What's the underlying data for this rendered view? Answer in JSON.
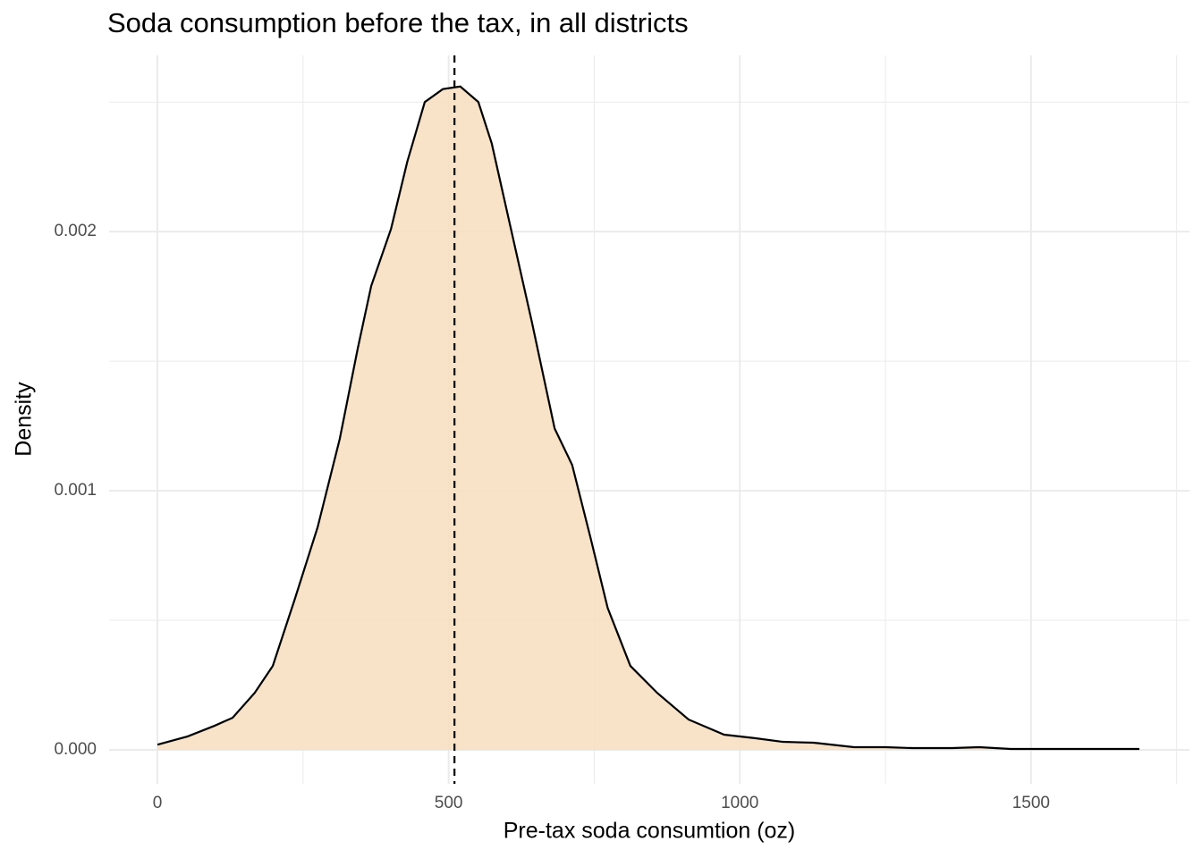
{
  "chart_data": {
    "type": "density",
    "title": "Soda consumption before the tax, in all districts",
    "x_label": "Pre-tax soda consumtion (oz)",
    "y_label": "Density",
    "x": [
      0,
      52,
      98,
      129,
      167,
      198,
      236,
      275,
      313,
      344,
      367,
      401,
      429,
      459,
      490,
      520,
      551,
      574,
      605,
      643,
      682,
      712,
      743,
      773,
      812,
      858,
      912,
      973,
      1027,
      1074,
      1127,
      1196,
      1250,
      1296,
      1365,
      1411,
      1465,
      1572,
      1649,
      1686
    ],
    "values": [
      2e-05,
      5.2e-05,
      9.3e-05,
      0.000124,
      0.00022,
      0.000324,
      0.000583,
      0.000859,
      0.0012,
      0.00155,
      0.00179,
      0.00201,
      0.00227,
      0.0025,
      0.00255,
      0.00256,
      0.0025,
      0.00234,
      0.00203,
      0.00165,
      0.00124,
      0.0011,
      0.000824,
      0.000548,
      0.000324,
      0.00022,
      0.000117,
      5.86e-05,
      4.48e-05,
      3.1e-05,
      2.76e-05,
      1.03e-05,
      1.03e-05,
      6.9e-06,
      6.9e-06,
      1.03e-05,
      3.4e-06,
      3.4e-06,
      3.4e-06,
      3.4e-06
    ],
    "color": "#f7dfc2",
    "line_color": "#000000",
    "vline": 510,
    "xlim": [
      -83,
      1772
    ],
    "ylim": [
      -0.000131,
      0.00268
    ],
    "xticks": [
      0,
      500,
      1000,
      1500
    ],
    "yticks": [
      {
        "value": 0,
        "label": "0.000"
      },
      {
        "value": 0.001,
        "label": "0.001"
      },
      {
        "value": 0.002,
        "label": "0.002"
      }
    ],
    "x_minor_ticks": [
      250,
      750,
      1250,
      1750
    ],
    "y_minor_ticks": [
      0.0005,
      0.0015,
      0.0025
    ],
    "grid": true
  }
}
